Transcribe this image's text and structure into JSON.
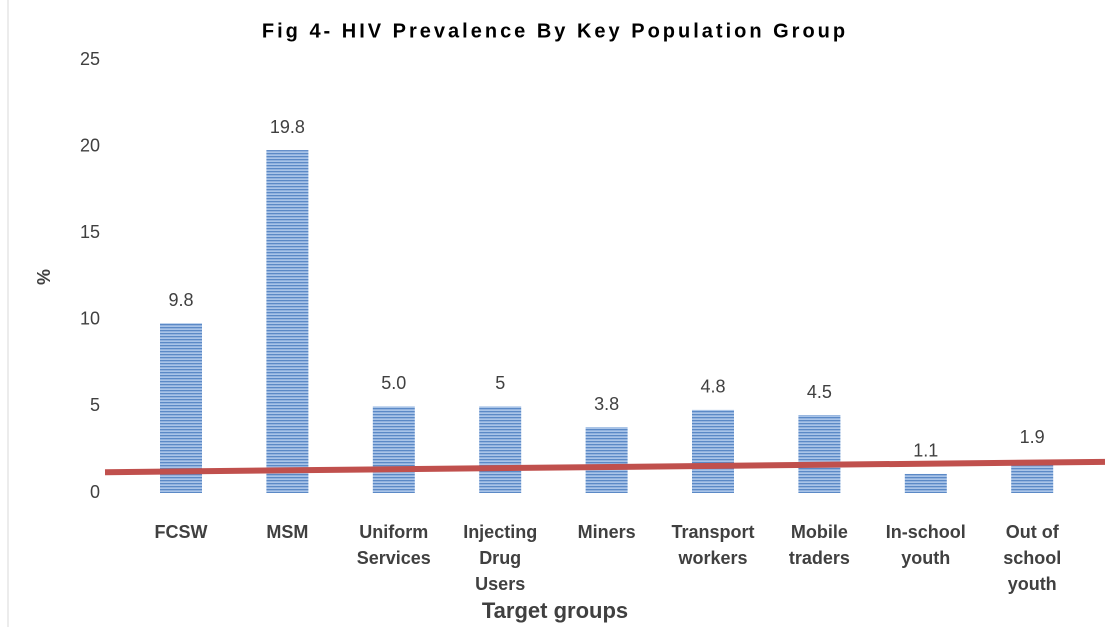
{
  "chart_data": {
    "type": "bar",
    "title": "Fig 4- HIV Prevalence By Key Population Group",
    "x_label": "Target groups",
    "y_label": "%",
    "categories": [
      "FCSW",
      "MSM",
      "Uniform Services",
      "Injecting Drug Users",
      "Miners",
      "Transport workers",
      "Mobile traders",
      "In-school youth",
      "Out of school youth"
    ],
    "values": [
      9.8,
      19.8,
      5,
      5,
      3.8,
      4.8,
      4.5,
      1.1,
      1.9
    ],
    "value_labels": [
      "9.8",
      "19.8",
      "5.0",
      "5",
      "3.8",
      "4.8",
      "4.5",
      "1.1",
      "1.9"
    ],
    "color": "#4f81bd",
    "ylim": [
      0,
      25
    ],
    "yticks": [
      0,
      5,
      10,
      15,
      20,
      25
    ],
    "grid": false,
    "trendline": {
      "color": "#c0504d",
      "values": [
        1.2,
        1.8
      ]
    }
  }
}
